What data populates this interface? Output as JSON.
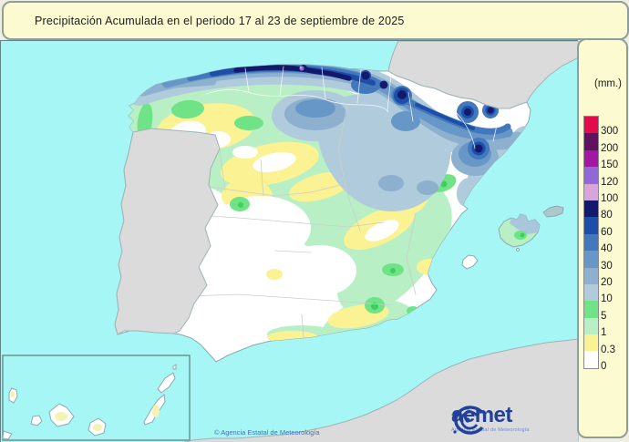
{
  "title": "Precipitación Acumulada en el periodo 17 al 23 de septiembre de 2025",
  "legend": {
    "unit": "(mm.)",
    "items": [
      {
        "value": "300",
        "color": "#E40A4D"
      },
      {
        "value": "200",
        "color": "#60125F"
      },
      {
        "value": "150",
        "color": "#A118A3"
      },
      {
        "value": "120",
        "color": "#9168D8"
      },
      {
        "value": "100",
        "color": "#D9A3DC"
      },
      {
        "value": "80",
        "color": "#131A6E"
      },
      {
        "value": "60",
        "color": "#1D4FA8"
      },
      {
        "value": "40",
        "color": "#4379BC"
      },
      {
        "value": "30",
        "color": "#6797C6"
      },
      {
        "value": "20",
        "color": "#8CB0CE"
      },
      {
        "value": "10",
        "color": "#B0CBDC"
      },
      {
        "value": "5",
        "color": "#6FE385"
      },
      {
        "value": "1",
        "color": "#B9EFC4"
      },
      {
        "value": "0.3",
        "color": "#FAF293"
      },
      {
        "value": "0",
        "color": "#FFFFFF"
      }
    ]
  },
  "logo": {
    "brand": "aemet",
    "subtitle": "Agencia Estatal de Meteorología"
  },
  "map": {
    "attribution": "© Agencia Estatal de Meteorología"
  },
  "colors": {
    "sea": "#A5F6F5",
    "foreign_land": "#DBDBDB",
    "panel_background": "#FBFAD0",
    "brand_blue": "#21409A"
  }
}
